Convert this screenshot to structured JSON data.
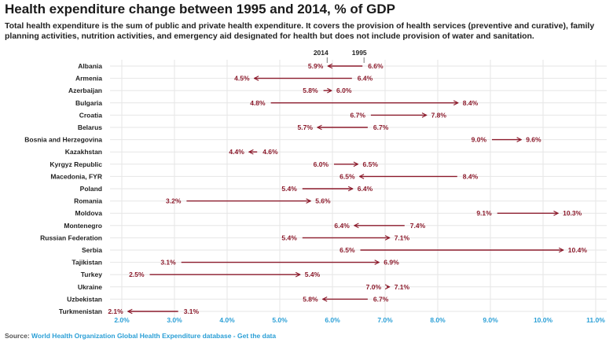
{
  "title": "Health expenditure change between 1995 and 2014, % of GDP",
  "subtitle": "Total health expenditure is the sum of public and private health expenditure. It covers the provision of health services (preventive and curative), family planning activities, nutrition activities, and emergency aid designated for health but does not include provision of water and sanitation.",
  "source": {
    "prefix": "Source: ",
    "text": "World Health Organization Global Health Expenditure database - Get the data"
  },
  "colors": {
    "arrow": "#8b1a2b",
    "tick": "#2a9fd6",
    "grid": "#e6e6e6"
  },
  "chart_data": {
    "type": "arrow",
    "title": "Health expenditure change between 1995 and 2014, % of GDP",
    "xlim": [
      1.6,
      11.3
    ],
    "x_ticks": [
      2,
      3,
      4,
      5,
      6,
      7,
      8,
      9,
      10,
      11
    ],
    "x_tick_labels": [
      "2.0%",
      "3.0%",
      "4.0%",
      "5.0%",
      "6.0%",
      "7.0%",
      "8.0%",
      "9.0%",
      "10.0%",
      "11.0%"
    ],
    "legend": {
      "start_label": "1995",
      "end_label": "2014"
    },
    "series": [
      {
        "country": "Albania",
        "y1995": 6.6,
        "y2014": 5.9,
        "label1995": "6.6%",
        "label2014": "5.9%"
      },
      {
        "country": "Armenia",
        "y1995": 6.4,
        "y2014": 4.5,
        "label1995": "6.4%",
        "label2014": "4.5%"
      },
      {
        "country": "Azerbaijan",
        "y1995": 5.8,
        "y2014": 6.0,
        "label1995": "5.8%",
        "label2014": "6.0%"
      },
      {
        "country": "Bulgaria",
        "y1995": 4.8,
        "y2014": 8.4,
        "label1995": "4.8%",
        "label2014": "8.4%"
      },
      {
        "country": "Croatia",
        "y1995": 6.7,
        "y2014": 7.8,
        "label1995": "6.7%",
        "label2014": "7.8%"
      },
      {
        "country": "Belarus",
        "y1995": 6.7,
        "y2014": 5.7,
        "label1995": "6.7%",
        "label2014": "5.7%"
      },
      {
        "country": "Bosnia and Herzegovina",
        "y1995": 9.0,
        "y2014": 9.6,
        "label1995": "9.0%",
        "label2014": "9.6%"
      },
      {
        "country": "Kazakhstan",
        "y1995": 4.6,
        "y2014": 4.4,
        "label1995": "4.6%",
        "label2014": "4.4%"
      },
      {
        "country": "Kyrgyz Republic",
        "y1995": 6.0,
        "y2014": 6.5,
        "label1995": "6.0%",
        "label2014": "6.5%"
      },
      {
        "country": "Macedonia, FYR",
        "y1995": 8.4,
        "y2014": 6.5,
        "label1995": "8.4%",
        "label2014": "6.5%"
      },
      {
        "country": "Poland",
        "y1995": 5.4,
        "y2014": 6.4,
        "label1995": "5.4%",
        "label2014": "6.4%"
      },
      {
        "country": "Romania",
        "y1995": 3.2,
        "y2014": 5.6,
        "label1995": "3.2%",
        "label2014": "5.6%"
      },
      {
        "country": "Moldova",
        "y1995": 9.1,
        "y2014": 10.3,
        "label1995": "9.1%",
        "label2014": "10.3%"
      },
      {
        "country": "Montenegro",
        "y1995": 7.4,
        "y2014": 6.4,
        "label1995": "7.4%",
        "label2014": "6.4%"
      },
      {
        "country": "Russian Federation",
        "y1995": 5.4,
        "y2014": 7.1,
        "label1995": "5.4%",
        "label2014": "7.1%"
      },
      {
        "country": "Serbia",
        "y1995": 6.5,
        "y2014": 10.4,
        "label1995": "6.5%",
        "label2014": "10.4%"
      },
      {
        "country": "Tajikistan",
        "y1995": 3.1,
        "y2014": 6.9,
        "label1995": "3.1%",
        "label2014": "6.9%"
      },
      {
        "country": "Turkey",
        "y1995": 2.5,
        "y2014": 5.4,
        "label1995": "2.5%",
        "label2014": "5.4%"
      },
      {
        "country": "Ukraine",
        "y1995": 7.0,
        "y2014": 7.1,
        "label1995": "7.0%",
        "label2014": "7.1%"
      },
      {
        "country": "Uzbekistan",
        "y1995": 6.7,
        "y2014": 5.8,
        "label1995": "6.7%",
        "label2014": "5.8%"
      },
      {
        "country": "Turkmenistan",
        "y1995": 3.1,
        "y2014": 2.1,
        "label1995": "3.1%",
        "label2014": "2.1%"
      }
    ]
  }
}
